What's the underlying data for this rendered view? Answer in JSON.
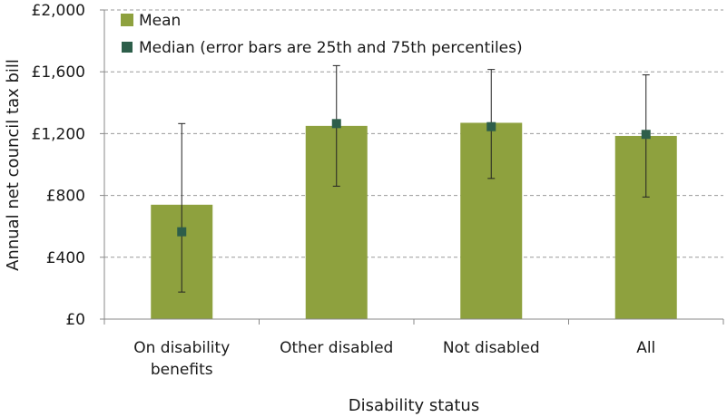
{
  "chart_data": {
    "type": "bar",
    "xlabel": "Disability status",
    "ylabel": "Annual net council tax bill",
    "ylim": [
      0,
      2000
    ],
    "yticks": [
      0,
      400,
      800,
      1200,
      1600,
      2000
    ],
    "ytick_labels": [
      "£0",
      "£400",
      "£800",
      "£1,200",
      "£1,600",
      "£2,000"
    ],
    "grid": "horizontal dashed",
    "legend_position": "top-left",
    "categories": [
      [
        "On disability",
        "benefits"
      ],
      [
        "Other disabled"
      ],
      [
        "Not disabled"
      ],
      [
        "All"
      ]
    ],
    "series": [
      {
        "name": "Mean",
        "kind": "bar",
        "color": "#8ea13e",
        "values": [
          740,
          1250,
          1270,
          1185
        ]
      },
      {
        "name": "Median (error bars are 25th and 75th percentiles)",
        "kind": "point",
        "color": "#2d5e4a",
        "values": [
          565,
          1265,
          1245,
          1195
        ],
        "p25": [
          175,
          860,
          910,
          790
        ],
        "p75": [
          1265,
          1640,
          1615,
          1580
        ]
      }
    ]
  }
}
